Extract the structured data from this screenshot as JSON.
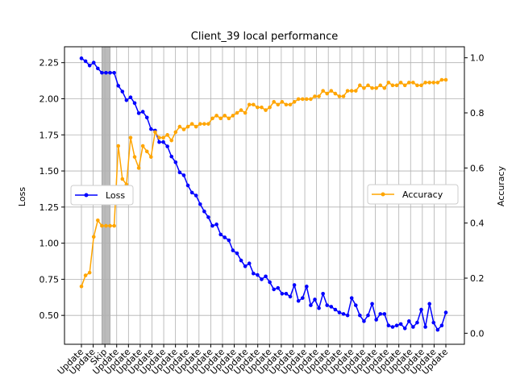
{
  "chart_data": {
    "type": "line",
    "title": "Client_39 local performance",
    "xlabel": "",
    "ylabel_left": "Loss",
    "ylabel_right": "Accuracy",
    "ylim_left": [
      0.3,
      2.36
    ],
    "ylim_right": [
      -0.04,
      1.04
    ],
    "yticks_left": [
      "0.50",
      "0.75",
      "1.00",
      "1.25",
      "1.50",
      "1.75",
      "2.00",
      "2.25"
    ],
    "yticks_right": [
      "0.0",
      "0.2",
      "0.4",
      "0.6",
      "0.8",
      "1.0"
    ],
    "grid": true,
    "skip_region": {
      "start": 5,
      "end": 7
    },
    "xtick_labels": [
      "Update",
      "Update",
      "Skip",
      "Update",
      "Update",
      "Update",
      "Update",
      "Update",
      "Update",
      "Update",
      "Update",
      "Update",
      "Update",
      "Update",
      "Update",
      "Update",
      "Update",
      "Update",
      "Update",
      "Update",
      "Update",
      "Update",
      "Update",
      "Update",
      "Update",
      "Update",
      "Update",
      "Update",
      "Update",
      "Update",
      "Update",
      "Update"
    ],
    "series": [
      {
        "name": "Loss",
        "axis": "left",
        "color": "#0000ff",
        "legend_position": "center-left",
        "values": [
          2.28,
          2.26,
          2.23,
          2.25,
          2.21,
          2.18,
          2.18,
          2.18,
          2.18,
          2.09,
          2.05,
          1.99,
          2.01,
          1.97,
          1.9,
          1.91,
          1.87,
          1.79,
          1.78,
          1.7,
          1.7,
          1.67,
          1.6,
          1.56,
          1.49,
          1.47,
          1.4,
          1.35,
          1.33,
          1.27,
          1.22,
          1.18,
          1.12,
          1.13,
          1.06,
          1.04,
          1.02,
          0.95,
          0.93,
          0.88,
          0.84,
          0.86,
          0.79,
          0.78,
          0.75,
          0.77,
          0.73,
          0.68,
          0.69,
          0.65,
          0.65,
          0.63,
          0.71,
          0.6,
          0.62,
          0.7,
          0.57,
          0.61,
          0.55,
          0.65,
          0.57,
          0.56,
          0.54,
          0.52,
          0.51,
          0.5,
          0.62,
          0.57,
          0.5,
          0.46,
          0.5,
          0.58,
          0.47,
          0.51,
          0.51,
          0.43,
          0.42,
          0.43,
          0.44,
          0.41,
          0.46,
          0.42,
          0.45,
          0.54,
          0.42,
          0.58,
          0.45,
          0.4,
          0.43,
          0.52
        ]
      },
      {
        "name": "Accuracy",
        "axis": "right",
        "color": "#ffa500",
        "legend_position": "center-right",
        "values": [
          0.17,
          0.21,
          0.22,
          0.35,
          0.41,
          0.39,
          0.39,
          0.39,
          0.39,
          0.68,
          0.56,
          0.54,
          0.71,
          0.64,
          0.6,
          0.68,
          0.66,
          0.64,
          0.73,
          0.71,
          0.71,
          0.72,
          0.7,
          0.73,
          0.75,
          0.74,
          0.75,
          0.76,
          0.75,
          0.76,
          0.76,
          0.76,
          0.78,
          0.79,
          0.78,
          0.79,
          0.78,
          0.79,
          0.8,
          0.81,
          0.8,
          0.83,
          0.83,
          0.82,
          0.82,
          0.81,
          0.82,
          0.84,
          0.83,
          0.84,
          0.83,
          0.83,
          0.84,
          0.85,
          0.85,
          0.85,
          0.85,
          0.86,
          0.86,
          0.88,
          0.87,
          0.88,
          0.87,
          0.86,
          0.86,
          0.88,
          0.88,
          0.88,
          0.9,
          0.89,
          0.9,
          0.89,
          0.89,
          0.9,
          0.89,
          0.91,
          0.9,
          0.9,
          0.91,
          0.9,
          0.91,
          0.91,
          0.9,
          0.9,
          0.91,
          0.91,
          0.91,
          0.91,
          0.92,
          0.92
        ]
      }
    ]
  }
}
